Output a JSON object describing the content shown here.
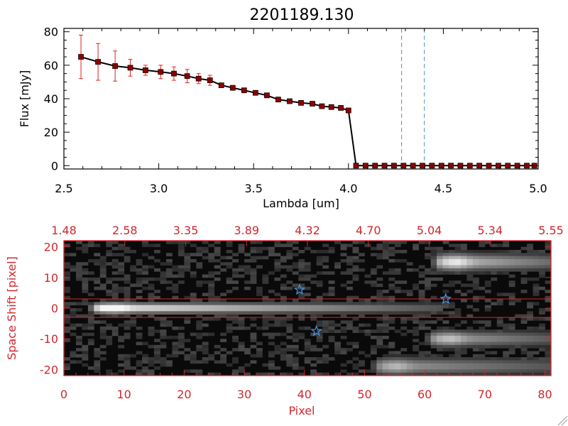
{
  "chart_data": [
    {
      "type": "line",
      "title": "2201189.130",
      "xlabel": "Lambda [um]",
      "ylabel": "Flux [mJy]",
      "xlim": [
        2.5,
        5.0
      ],
      "ylim": [
        -2,
        82
      ],
      "xticks": [
        "2.5",
        "3.0",
        "3.5",
        "4.0",
        "4.5",
        "5.0"
      ],
      "yticks": [
        "0",
        "20",
        "40",
        "60",
        "80"
      ],
      "grid": false,
      "series": [
        {
          "x": [
            2.59,
            2.68,
            2.77,
            2.85,
            2.93,
            3.01,
            3.08,
            3.15,
            3.21,
            3.27,
            3.33,
            3.39,
            3.45,
            3.51,
            3.57,
            3.63,
            3.69,
            3.75,
            3.81,
            3.86,
            3.91,
            3.96,
            4.0,
            4.04,
            4.09,
            4.14,
            4.19,
            4.24,
            4.29,
            4.34,
            4.39,
            4.44,
            4.49,
            4.54,
            4.59,
            4.64,
            4.69,
            4.74,
            4.79,
            4.84,
            4.89,
            4.94,
            4.98
          ],
          "y": [
            65,
            62,
            59.5,
            58.5,
            57,
            56,
            55,
            53.5,
            52,
            51,
            48,
            46.5,
            45,
            43.5,
            42,
            39.5,
            38.5,
            37.5,
            37,
            35.5,
            35,
            34.5,
            33,
            0,
            0,
            0,
            0,
            0,
            0,
            0,
            0,
            0,
            0,
            0,
            0,
            0,
            0,
            0,
            0,
            0,
            0,
            0,
            0
          ],
          "yerr": [
            13,
            11,
            9,
            5,
            3,
            4,
            4,
            4,
            3,
            3,
            0,
            0,
            0,
            0,
            0,
            0,
            0,
            0,
            0,
            0,
            0,
            0,
            0,
            0,
            0,
            0,
            0,
            0,
            0,
            0,
            0,
            0,
            0,
            0,
            0,
            0,
            0,
            0,
            0,
            0,
            0,
            0,
            0
          ]
        }
      ],
      "vlines": [
        4.28,
        4.4
      ],
      "colors": {
        "line": "#000000",
        "marker": "#8b0000",
        "errorbar": "#e02020",
        "vline": "#4a90d9",
        "zero_line": "#e02020"
      }
    },
    {
      "type": "heatmap",
      "xlabel": "Pixel",
      "ylabel": "Space Shift [pixel]",
      "xlim": [
        0,
        81
      ],
      "ylim": [
        -22,
        22
      ],
      "xticks": [
        "0",
        "10",
        "20",
        "30",
        "40",
        "50",
        "60",
        "70",
        "80"
      ],
      "yticks": [
        "-20",
        "-10",
        "0",
        "10",
        "20"
      ],
      "top_ticks": [
        "1.48",
        "2.58",
        "3.35",
        "3.89",
        "4.32",
        "4.70",
        "5.04",
        "5.34",
        "5.55"
      ],
      "hlines": [
        3,
        -3
      ],
      "stars": [
        [
          39.2,
          6
        ],
        [
          63.5,
          3
        ],
        [
          42,
          -7.5
        ]
      ],
      "sources": [
        {
          "x0": 6,
          "x1": 63,
          "y": 0,
          "peak": 1.0,
          "taper": 0.7,
          "sigma_y": 1.6
        },
        {
          "x0": 63,
          "x1": 81,
          "y": 15,
          "peak": 0.8,
          "taper": 0.5,
          "sigma_y": 2.6
        },
        {
          "x0": 62,
          "x1": 81,
          "y": -10,
          "peak": 0.65,
          "taper": 0.5,
          "sigma_y": 2.4
        },
        {
          "x0": 53,
          "x1": 81,
          "y": -19,
          "peak": 0.6,
          "taper": 0.5,
          "sigma_y": 2.6
        }
      ],
      "colors": {
        "axis": "#d0272c",
        "star": "#4a90d9",
        "hline": "#d0272c"
      }
    }
  ]
}
